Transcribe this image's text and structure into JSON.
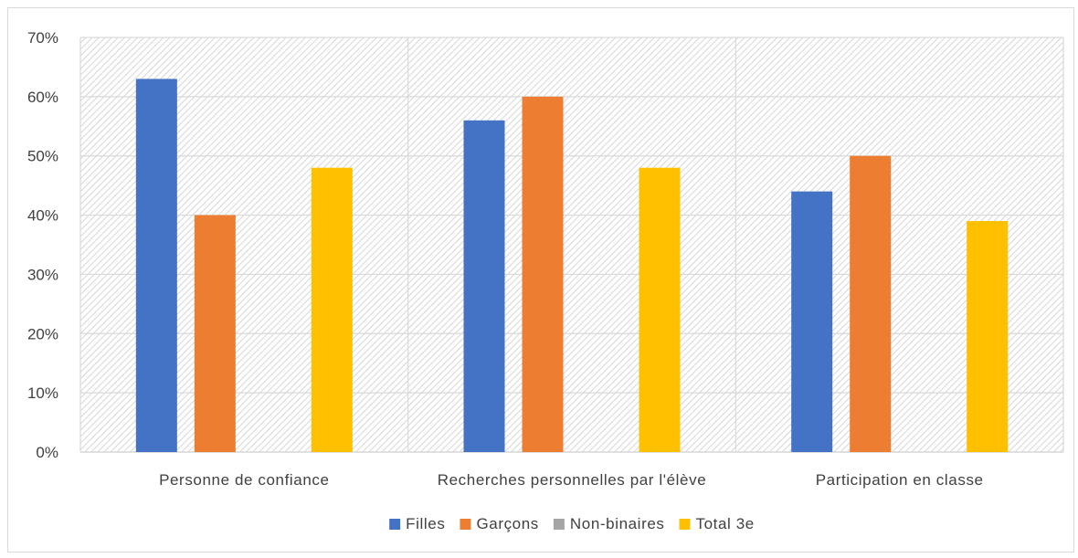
{
  "chart_data": {
    "type": "bar",
    "categories": [
      "Personne de confiance",
      "Recherches personnelles par l'élève",
      "Participation en classe"
    ],
    "series": [
      {
        "name": "Filles",
        "color": "#4472c4",
        "values": [
          63,
          56,
          44
        ]
      },
      {
        "name": "Garçons",
        "color": "#ed7d31",
        "values": [
          40,
          60,
          50
        ]
      },
      {
        "name": "Non-binaires",
        "color": "#a5a5a5",
        "values": [
          0,
          0,
          0
        ]
      },
      {
        "name": "Total 3e",
        "color": "#ffc000",
        "values": [
          48,
          48,
          39
        ]
      }
    ],
    "ylim": [
      0,
      70
    ],
    "yticks": [
      "0%",
      "10%",
      "20%",
      "30%",
      "40%",
      "50%",
      "60%",
      "70%"
    ],
    "grid": true,
    "legend_position": "bottom",
    "plot_background": "hatched-gray"
  }
}
